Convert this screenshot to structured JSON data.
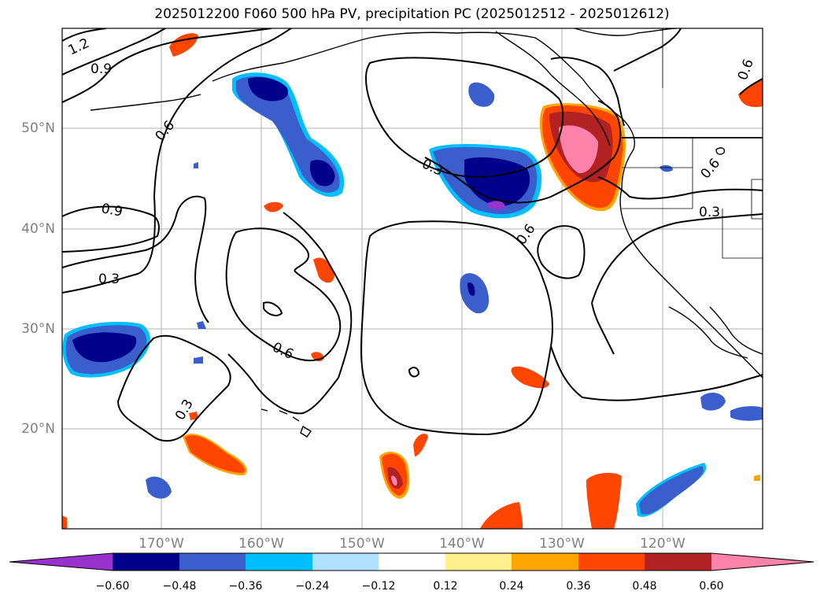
{
  "title": "2025012200 F060 500 hPa PV, precipitation PC (2025012512 - 2025012612)",
  "map": {
    "lat_labels": [
      "50°N",
      "40°N",
      "30°N",
      "20°N"
    ],
    "lon_labels": [
      "170°W",
      "160°W",
      "150°W",
      "140°W",
      "130°W",
      "120°W"
    ],
    "contour_labels": [
      "1.2",
      "0.9",
      "0.6",
      "0.9",
      "0.3",
      "0.6",
      "0.3",
      "0.6",
      "0.3",
      "0.6",
      "0.6",
      "0.3"
    ]
  },
  "colorbar": {
    "ticks": [
      "−0.60",
      "−0.48",
      "−0.36",
      "−0.24",
      "−0.12",
      "0.12",
      "0.24",
      "0.36",
      "0.48",
      "0.60"
    ],
    "colors": [
      "#9932cc",
      "#00008b",
      "#3a5fcd",
      "#00bfff",
      "#b0e2ff",
      "#ffffff",
      "#fff08c",
      "#ffa500",
      "#ff4500",
      "#b22222",
      "#ff82ab"
    ]
  }
}
